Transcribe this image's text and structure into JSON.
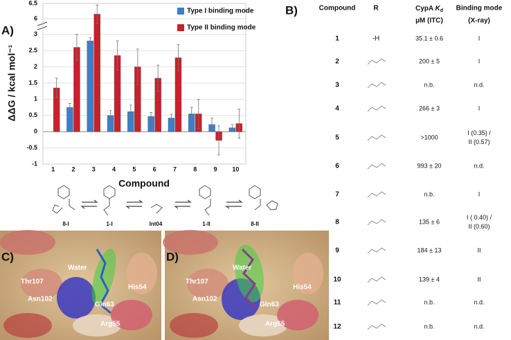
{
  "chart_data": {
    "type": "bar",
    "panel_label": "A)",
    "ylabel": "ΔΔG / kcal mol⁻¹",
    "xlabel": "Compound",
    "categories": [
      "1",
      "2",
      "3",
      "4",
      "5",
      "6",
      "7",
      "8",
      "9",
      "10"
    ],
    "series": [
      {
        "name": "Type I binding mode",
        "color": "#3b7fc9",
        "values": [
          null,
          0.75,
          2.8,
          0.5,
          0.62,
          0.47,
          0.42,
          0.55,
          0.22,
          0.12
        ],
        "errors": [
          null,
          0.12,
          0.1,
          0.15,
          0.2,
          0.12,
          0.12,
          0.2,
          0.2,
          0.1
        ]
      },
      {
        "name": "Type II binding mode",
        "color": "#c9202b",
        "values": [
          1.35,
          2.6,
          6.15,
          2.35,
          2.0,
          1.65,
          2.28,
          0.55,
          -0.27,
          0.25
        ],
        "errors": [
          0.3,
          0.4,
          0.3,
          0.45,
          0.55,
          0.4,
          0.4,
          0.45,
          0.45,
          0.45
        ]
      }
    ],
    "ylim": [
      -1,
      6.5
    ],
    "y_break": [
      3.25,
      5.75
    ],
    "yticks": [
      -1,
      -0.5,
      0,
      0.5,
      1,
      1.5,
      2,
      2.5,
      3,
      6,
      6.5
    ],
    "grid": true
  },
  "scheme": {
    "labels": [
      "8-I",
      "1-I",
      "Int04",
      "1-II",
      "8-II"
    ]
  },
  "table": {
    "panel_label": "B)",
    "headers": {
      "compound": "Compound",
      "r": "R",
      "kd": [
        "CypA ",
        "K",
        "d",
        "µM (ITC)"
      ],
      "mode": [
        "Binding mode",
        "(X-ray)"
      ]
    },
    "rows": [
      {
        "compound": "1",
        "r": "-H",
        "kd": "35.1 ± 0.6",
        "mode": [
          "I"
        ]
      },
      {
        "compound": "2",
        "kd": "200 ± 5",
        "mode": [
          "I"
        ]
      },
      {
        "compound": "3",
        "kd": "n.b.",
        "mode": [
          "n.d."
        ]
      },
      {
        "compound": "4",
        "kd": "266 ± 3",
        "mode": [
          "I"
        ]
      },
      {
        "compound": "5",
        "kd": ">1000",
        "mode": [
          "I (0.35) /",
          "II (0.57)"
        ]
      },
      {
        "compound": "6",
        "kd": "993 ± 20",
        "mode": [
          "n.d."
        ]
      },
      {
        "compound": "7",
        "kd": "n.b.",
        "mode": [
          "I"
        ]
      },
      {
        "compound": "8",
        "kd": "135 ± 6",
        "mode": [
          "I ( 0.40) /",
          "II (0.60)"
        ]
      },
      {
        "compound": "9",
        "kd": "184 ± 13",
        "mode": [
          "II"
        ]
      },
      {
        "compound": "10",
        "kd": "139 ± 4",
        "mode": [
          "II"
        ]
      },
      {
        "compound": "11",
        "kd": "n.b.",
        "mode": [
          "n.d."
        ]
      },
      {
        "compound": "12",
        "kd": "n.b.",
        "mode": [
          "n.d."
        ]
      }
    ]
  },
  "panels": [
    {
      "label": "C)",
      "residues": [
        "Thr107",
        "Water",
        "His54",
        "Asn102",
        "Gln63",
        "Arg55"
      ]
    },
    {
      "label": "D)",
      "residues": [
        "Thr107",
        "Water",
        "His54",
        "Asn102",
        "Gln63",
        "Arg55"
      ]
    }
  ]
}
